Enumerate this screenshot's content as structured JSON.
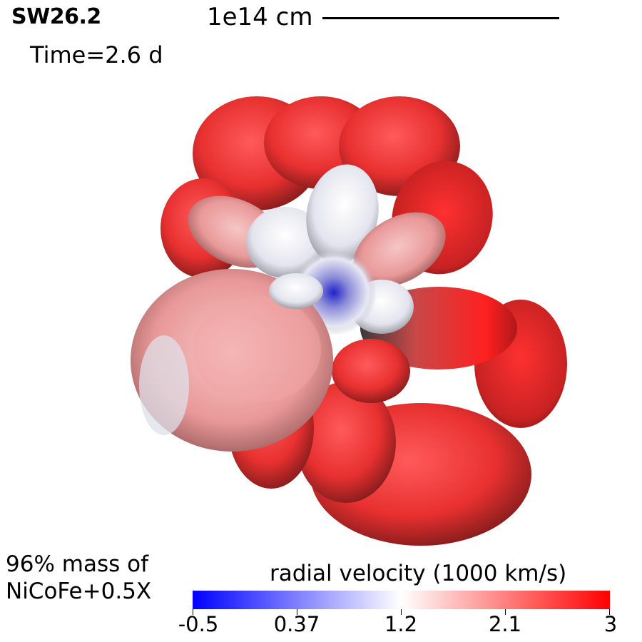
{
  "header": {
    "model": "SW26.2",
    "time": "Time=2.6 d",
    "scale_label": "1e14 cm"
  },
  "footer": {
    "mass_line1": "96% mass of",
    "mass_line2": "NiCoFe+0.5X"
  },
  "colorbar": {
    "title": "radial velocity (1000 km/s)",
    "ticks": [
      "-0.5",
      "0.37",
      "1.2",
      "2.1",
      "3"
    ],
    "colors": {
      "low": "#0000ff",
      "mid": "#ffffff",
      "high": "#ff0000"
    }
  }
}
